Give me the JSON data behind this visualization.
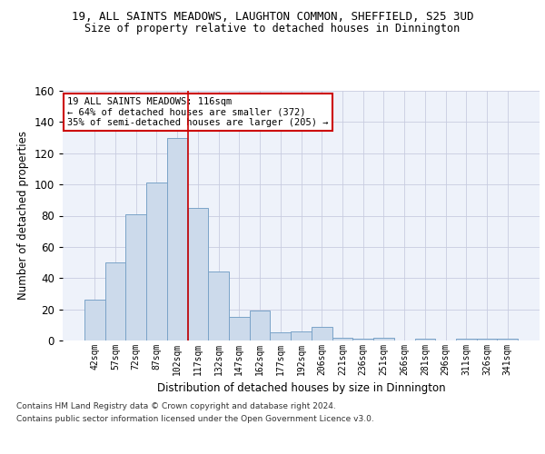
{
  "title_line1": "19, ALL SAINTS MEADOWS, LAUGHTON COMMON, SHEFFIELD, S25 3UD",
  "title_line2": "Size of property relative to detached houses in Dinnington",
  "xlabel": "Distribution of detached houses by size in Dinnington",
  "ylabel": "Number of detached properties",
  "categories": [
    "42sqm",
    "57sqm",
    "72sqm",
    "87sqm",
    "102sqm",
    "117sqm",
    "132sqm",
    "147sqm",
    "162sqm",
    "177sqm",
    "192sqm",
    "206sqm",
    "221sqm",
    "236sqm",
    "251sqm",
    "266sqm",
    "281sqm",
    "296sqm",
    "311sqm",
    "326sqm",
    "341sqm"
  ],
  "values": [
    26,
    50,
    81,
    101,
    130,
    85,
    44,
    15,
    19,
    5,
    6,
    9,
    2,
    1,
    2,
    0,
    1,
    0,
    1,
    1,
    1
  ],
  "bar_color": "#ccdaeb",
  "bar_edge_color": "#7aa3c8",
  "bar_edge_width": 0.7,
  "grid_color": "#c8cce0",
  "background_color": "#eef2fa",
  "ylim": [
    0,
    160
  ],
  "yticks": [
    0,
    20,
    40,
    60,
    80,
    100,
    120,
    140,
    160
  ],
  "red_line_x": 4.5,
  "annotation_text": "19 ALL SAINTS MEADOWS: 116sqm\n← 64% of detached houses are smaller (372)\n35% of semi-detached houses are larger (205) →",
  "annotation_box_color": "#ffffff",
  "annotation_border_color": "#cc0000",
  "footer_line1": "Contains HM Land Registry data © Crown copyright and database right 2024.",
  "footer_line2": "Contains public sector information licensed under the Open Government Licence v3.0."
}
